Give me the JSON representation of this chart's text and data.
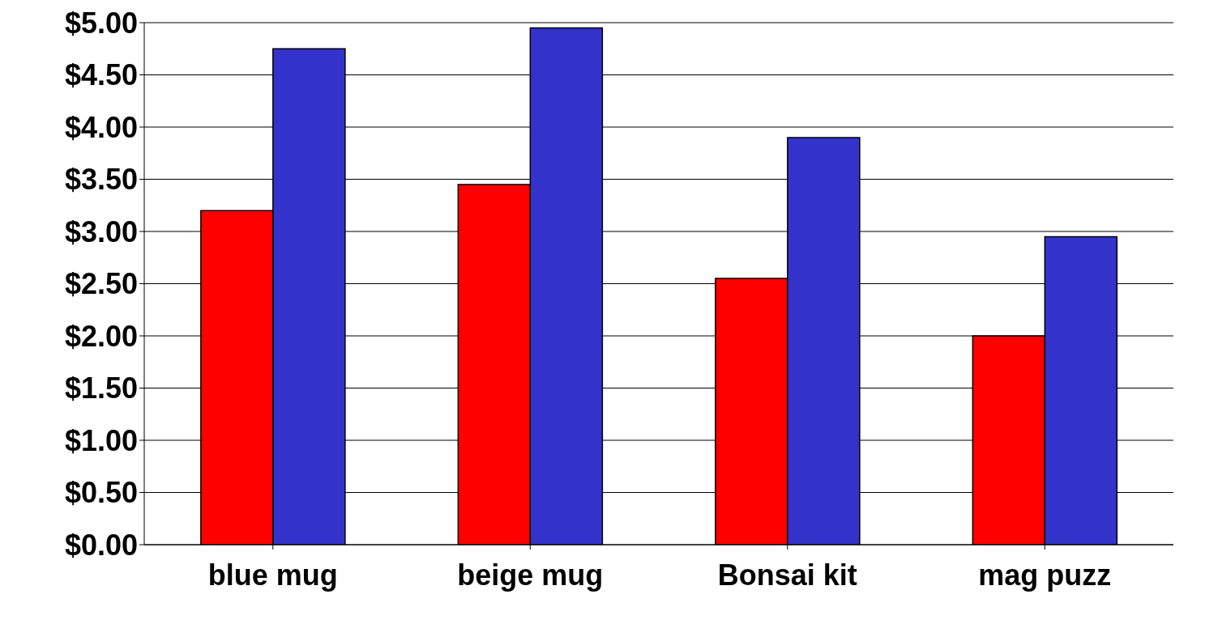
{
  "chart_data": {
    "type": "bar",
    "categories": [
      "blue mug",
      "beige mug",
      "Bonsai kit",
      "mag puzz"
    ],
    "series": [
      {
        "color": "#ff0000",
        "values": [
          3.2,
          3.45,
          2.55,
          2.0
        ]
      },
      {
        "color": "#3333cc",
        "values": [
          4.75,
          4.95,
          3.9,
          2.95
        ]
      }
    ],
    "ylim": [
      0,
      5
    ],
    "yticks": [
      {
        "value": 0,
        "label": "$0.00"
      },
      {
        "value": 0.5,
        "label": "$0.50"
      },
      {
        "value": 1,
        "label": "$1.00"
      },
      {
        "value": 1.5,
        "label": "$1.50"
      },
      {
        "value": 2,
        "label": "$2.00"
      },
      {
        "value": 2.5,
        "label": "$2.50"
      },
      {
        "value": 3,
        "label": "$3.00"
      },
      {
        "value": 3.5,
        "label": "$3.50"
      },
      {
        "value": 4,
        "label": "$4.00"
      },
      {
        "value": 4.5,
        "label": "$4.50"
      },
      {
        "value": 5,
        "label": "$5.00"
      }
    ],
    "grid": "y"
  }
}
